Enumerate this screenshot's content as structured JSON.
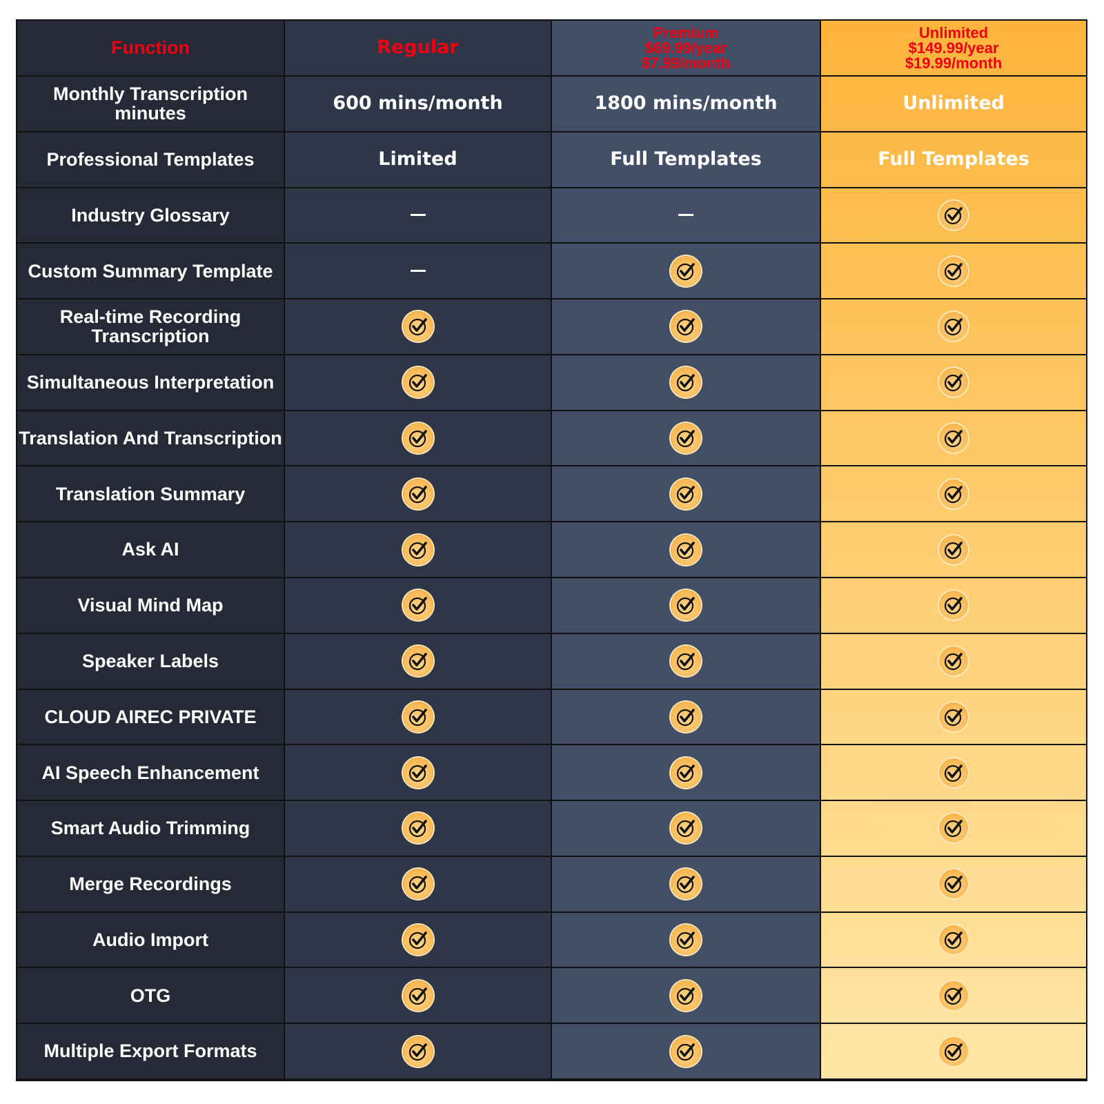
{
  "header": {
    "function": "Function",
    "regular": "Regular",
    "premium": [
      "Premium",
      "$69.99/year",
      "$7.99/month"
    ],
    "unlimited": [
      "Unlimited",
      "$149.99/year",
      "$19.99/month"
    ]
  },
  "colors": {
    "header_text": "#f00010",
    "check_fill": "#f4a93a",
    "unlimited_top": "#fdb43c",
    "unlimited_bottom": "#ffe6a6"
  },
  "rows": [
    {
      "feature": "Monthly Transcription minutes",
      "regular": "600 mins/month",
      "premium": "1800 mins/month",
      "unlimited": "Unlimited"
    },
    {
      "feature": "Professional Templates",
      "regular": "Limited",
      "premium": "Full Templates",
      "unlimited": "Full Templates"
    },
    {
      "feature": "Industry Glossary",
      "regular": "dash",
      "premium": "dash",
      "unlimited": "check"
    },
    {
      "feature": "Custom Summary Template",
      "regular": "dash",
      "premium": "check",
      "unlimited": "check"
    },
    {
      "feature": "Real-time Recording Transcription",
      "regular": "check",
      "premium": "check",
      "unlimited": "check"
    },
    {
      "feature": "Simultaneous Interpretation",
      "regular": "check",
      "premium": "check",
      "unlimited": "check"
    },
    {
      "feature": "Translation And Transcription",
      "regular": "check",
      "premium": "check",
      "unlimited": "check"
    },
    {
      "feature": "Translation Summary",
      "regular": "check",
      "premium": "check",
      "unlimited": "check"
    },
    {
      "feature": "Ask AI",
      "regular": "check",
      "premium": "check",
      "unlimited": "check"
    },
    {
      "feature": "Visual Mind Map",
      "regular": "check",
      "premium": "check",
      "unlimited": "check"
    },
    {
      "feature": "Speaker Labels",
      "regular": "check",
      "premium": "check",
      "unlimited": "check"
    },
    {
      "feature": "CLOUD AIREC PRIVATE",
      "regular": "check",
      "premium": "check",
      "unlimited": "check"
    },
    {
      "feature": "AI Speech Enhancement",
      "regular": "check",
      "premium": "check",
      "unlimited": "check"
    },
    {
      "feature": "Smart Audio Trimming",
      "regular": "check",
      "premium": "check",
      "unlimited": "check"
    },
    {
      "feature": "Merge Recordings",
      "regular": "check",
      "premium": "check",
      "unlimited": "check"
    },
    {
      "feature": "Audio Import",
      "regular": "check",
      "premium": "check",
      "unlimited": "check"
    },
    {
      "feature": "OTG",
      "regular": "check",
      "premium": "check",
      "unlimited": "check"
    },
    {
      "feature": "Multiple Export Formats",
      "regular": "check",
      "premium": "check",
      "unlimited": "check"
    }
  ]
}
